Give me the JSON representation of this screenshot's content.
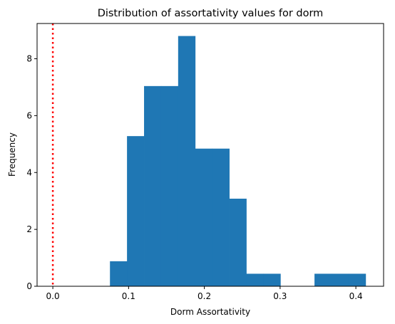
{
  "chart_data": {
    "type": "bar",
    "title": "Distribution of assortativity values for dorm",
    "xlabel": "Dorm Assortativity",
    "ylabel": "Frequency",
    "xlim": [
      -0.0208,
      0.4366
    ],
    "ylim": [
      0,
      9.24
    ],
    "x_ticks": [
      {
        "value": 0.0,
        "label": "0.0"
      },
      {
        "value": 0.1,
        "label": "0.1"
      },
      {
        "value": 0.2,
        "label": "0.2"
      },
      {
        "value": 0.3,
        "label": "0.3"
      },
      {
        "value": 0.4,
        "label": "0.4"
      }
    ],
    "y_ticks": [
      {
        "value": 0,
        "label": "0"
      },
      {
        "value": 2,
        "label": "2"
      },
      {
        "value": 4,
        "label": "4"
      },
      {
        "value": 6,
        "label": "6"
      },
      {
        "value": 8,
        "label": "8"
      }
    ],
    "bin_edges": [
      0.0754,
      0.0979,
      0.1204,
      0.1429,
      0.1654,
      0.1879,
      0.2104,
      0.2329,
      0.2554,
      0.2779,
      0.3004,
      0.3229,
      0.3454,
      0.3679,
      0.3904,
      0.4129
    ],
    "values": [
      0.88,
      5.28,
      7.04,
      7.04,
      8.8,
      4.84,
      4.84,
      3.08,
      0.44,
      0.44,
      0,
      0,
      0.44,
      0.44,
      0.44
    ],
    "bar_color": "#1f77b4",
    "reference_line": {
      "x": 0.0,
      "color": "#ff0000",
      "style": "dotted"
    },
    "grid": false
  }
}
